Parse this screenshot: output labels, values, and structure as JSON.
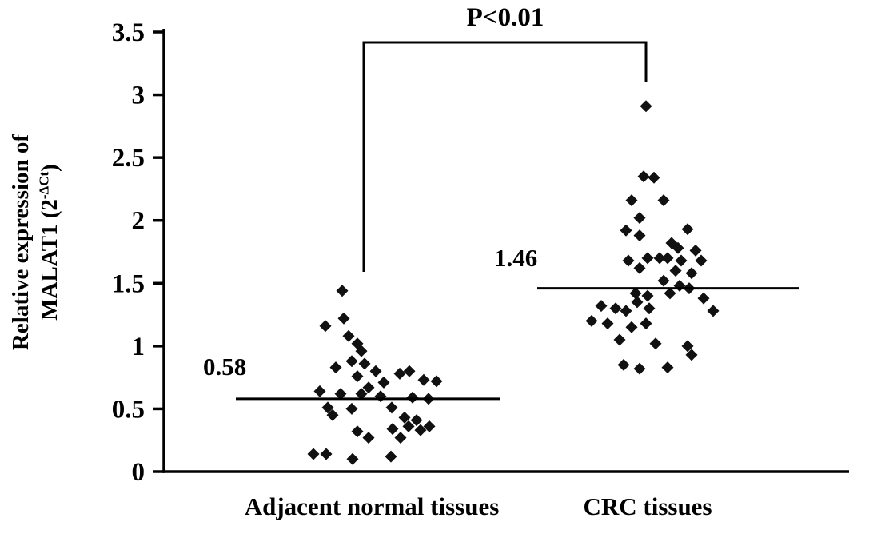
{
  "figure": {
    "background": "#ffffff"
  },
  "colors": {
    "marker": "#111111",
    "axis": "#000000",
    "text": "#000000",
    "background": "#ffffff"
  },
  "chart_data": {
    "type": "scatter",
    "title": "",
    "ylabel": {
      "line1": "Relative expression of",
      "line2_pre": "MALAT1 (2",
      "sup": "-ΔCt",
      "line2_post": ")"
    },
    "xlabel": "",
    "ylim": [
      0,
      3.5
    ],
    "yticks": [
      0,
      0.5,
      1,
      1.5,
      2,
      2.5,
      3,
      3.5
    ],
    "ytick_labels": [
      "0",
      "0.5",
      "1",
      "1.5",
      "2",
      "2.5",
      "3",
      "3.5"
    ],
    "grid": false,
    "legend": false,
    "significance": {
      "label": "P<0.01",
      "compares": [
        "Adjacent normal tissues",
        "CRC tissues"
      ]
    },
    "groups": [
      {
        "label": "Adjacent normal tissues",
        "mean": 0.58,
        "mean_label": "0.58",
        "points": [
          [
            -37,
            1.44
          ],
          [
            -58,
            1.16
          ],
          [
            -35,
            1.22
          ],
          [
            -29,
            1.08
          ],
          [
            -18,
            1.02
          ],
          [
            -13,
            0.96
          ],
          [
            -25,
            0.88
          ],
          [
            -9,
            0.86
          ],
          [
            -45,
            0.83
          ],
          [
            5,
            0.8
          ],
          [
            -18,
            0.76
          ],
          [
            35,
            0.78
          ],
          [
            47,
            0.8
          ],
          [
            15,
            0.71
          ],
          [
            65,
            0.73
          ],
          [
            81,
            0.72
          ],
          [
            -4,
            0.67
          ],
          [
            -65,
            0.64
          ],
          [
            -39,
            0.62
          ],
          [
            -13,
            0.62
          ],
          [
            11,
            0.6
          ],
          [
            51,
            0.59
          ],
          [
            71,
            0.58
          ],
          [
            -55,
            0.51
          ],
          [
            -25,
            0.5
          ],
          [
            25,
            0.51
          ],
          [
            -49,
            0.45
          ],
          [
            41,
            0.43
          ],
          [
            56,
            0.41
          ],
          [
            -18,
            0.32
          ],
          [
            26,
            0.34
          ],
          [
            46,
            0.36
          ],
          [
            61,
            0.33
          ],
          [
            72,
            0.36
          ],
          [
            -4,
            0.27
          ],
          [
            36,
            0.27
          ],
          [
            -73,
            0.14
          ],
          [
            -57,
            0.14
          ],
          [
            -24,
            0.1
          ],
          [
            24,
            0.12
          ]
        ]
      },
      {
        "label": "CRC tissues",
        "mean": 1.46,
        "mean_label": "1.46",
        "points": [
          [
            -2,
            2.91
          ],
          [
            -5,
            2.35
          ],
          [
            8,
            2.34
          ],
          [
            -20,
            2.16
          ],
          [
            20,
            2.16
          ],
          [
            -10,
            2.02
          ],
          [
            -27,
            1.92
          ],
          [
            50,
            1.93
          ],
          [
            -10,
            1.88
          ],
          [
            30,
            1.82
          ],
          [
            38,
            1.78
          ],
          [
            60,
            1.76
          ],
          [
            -24,
            1.68
          ],
          [
            0,
            1.7
          ],
          [
            15,
            1.7
          ],
          [
            25,
            1.7
          ],
          [
            42,
            1.68
          ],
          [
            67,
            1.68
          ],
          [
            -10,
            1.62
          ],
          [
            35,
            1.6
          ],
          [
            55,
            1.58
          ],
          [
            20,
            1.52
          ],
          [
            40,
            1.48
          ],
          [
            52,
            1.46
          ],
          [
            -15,
            1.42
          ],
          [
            0,
            1.4
          ],
          [
            28,
            1.42
          ],
          [
            -58,
            1.32
          ],
          [
            -40,
            1.3
          ],
          [
            -27,
            1.28
          ],
          [
            -13,
            1.35
          ],
          [
            2,
            1.3
          ],
          [
            70,
            1.38
          ],
          [
            82,
            1.28
          ],
          [
            -70,
            1.2
          ],
          [
            -50,
            1.18
          ],
          [
            -20,
            1.15
          ],
          [
            -2,
            1.18
          ],
          [
            -35,
            1.05
          ],
          [
            10,
            1.02
          ],
          [
            50,
            1.0
          ],
          [
            55,
            0.93
          ],
          [
            -30,
            0.85
          ],
          [
            -10,
            0.82
          ],
          [
            25,
            0.83
          ]
        ]
      }
    ]
  }
}
